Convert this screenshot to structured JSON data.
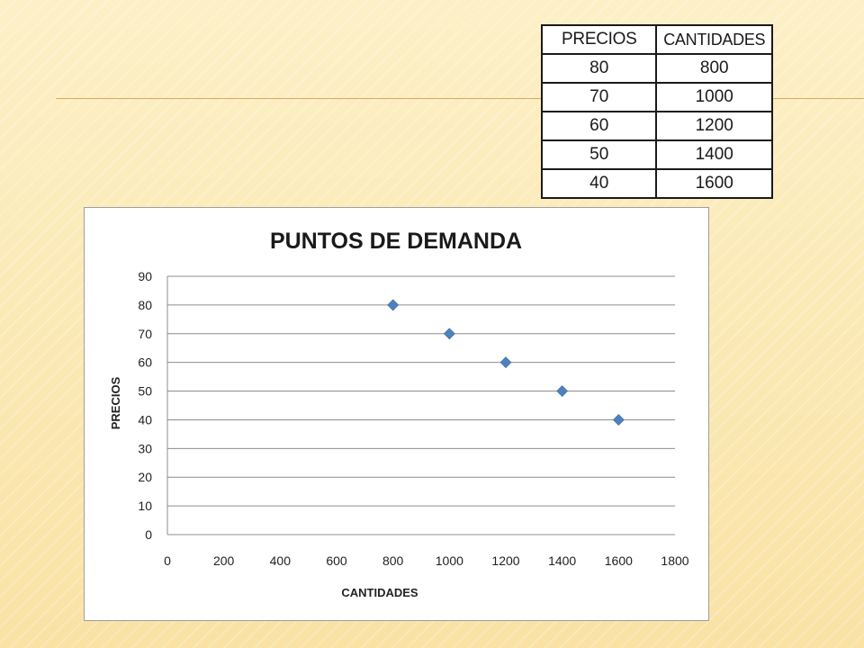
{
  "table": {
    "headers": [
      "PRECIOS",
      "CANTIDADES"
    ],
    "rows": [
      [
        "80",
        "800"
      ],
      [
        "70",
        "1000"
      ],
      [
        "60",
        "1200"
      ],
      [
        "50",
        "1400"
      ],
      [
        "40",
        "1600"
      ]
    ]
  },
  "chart_data": {
    "type": "scatter",
    "title": "PUNTOS DE DEMANDA",
    "xlabel": "CANTIDADES",
    "ylabel": "PRECIOS",
    "xlim": [
      0,
      1800
    ],
    "ylim": [
      0,
      90
    ],
    "xticks": [
      0,
      200,
      400,
      600,
      800,
      1000,
      1200,
      1400,
      1600,
      1800
    ],
    "yticks": [
      0,
      10,
      20,
      30,
      40,
      50,
      60,
      70,
      80,
      90
    ],
    "grid": "horizontal",
    "legend": "none",
    "marker": "diamond",
    "marker_color": "#4f81bd",
    "series": [
      {
        "x": [
          800,
          1000,
          1200,
          1400,
          1600
        ],
        "y": [
          80,
          70,
          60,
          50,
          40
        ]
      }
    ]
  }
}
